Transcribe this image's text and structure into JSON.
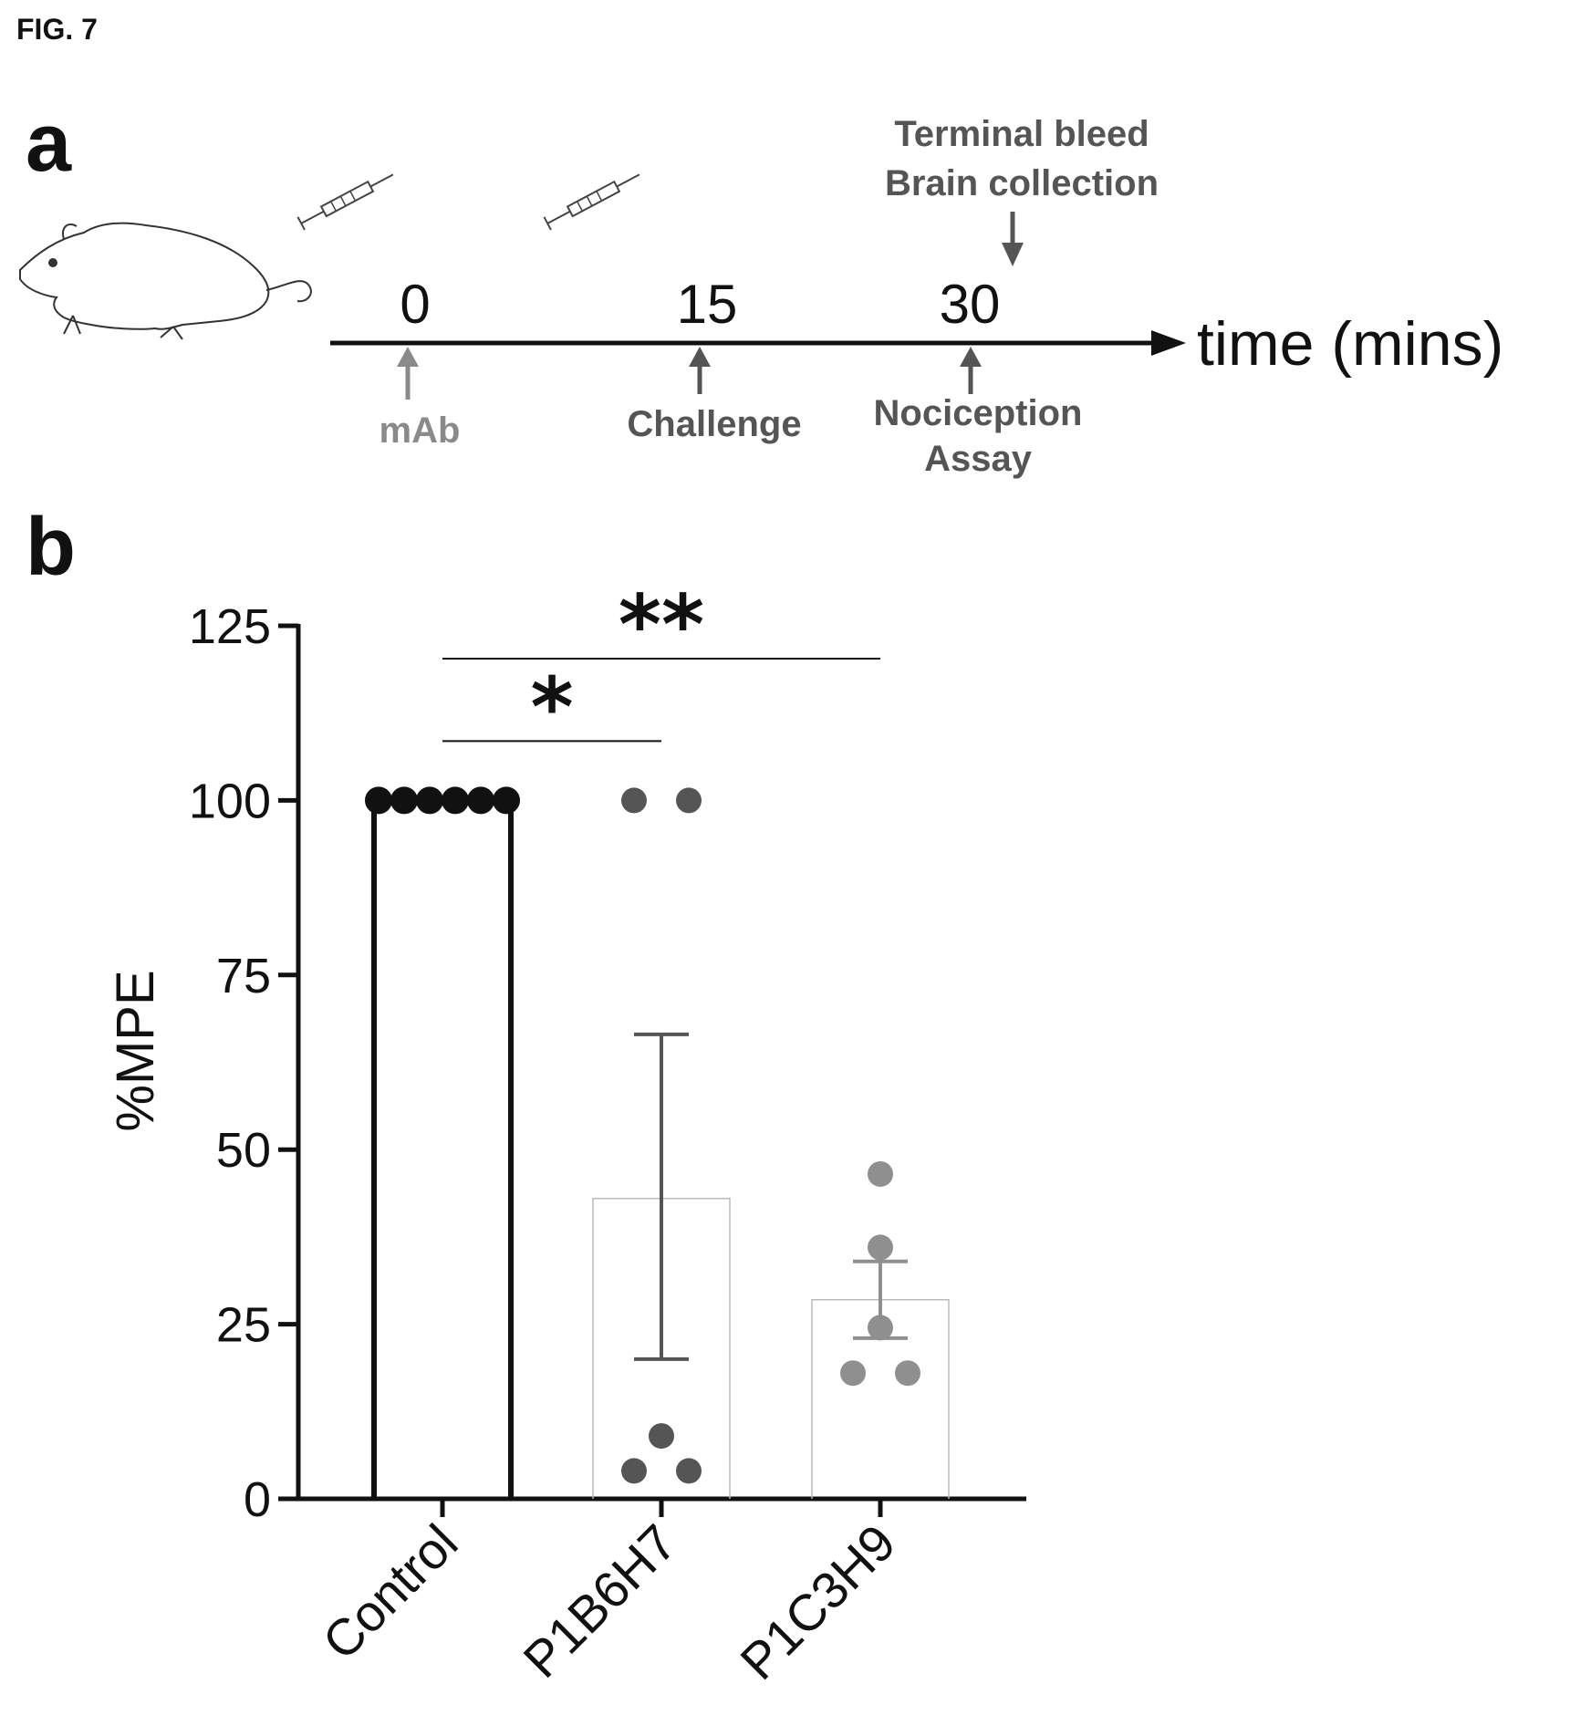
{
  "figure_label": "FIG. 7",
  "panel_a": {
    "letter": "a",
    "time_axis_label": "time (mins)",
    "ticks": [
      "0",
      "15",
      "30"
    ],
    "above_labels": [
      "Terminal bleed",
      "Brain collection"
    ],
    "below_labels": {
      "mab": "mAb",
      "challenge": "Challenge",
      "nociception": [
        "Nociception",
        "Assay"
      ]
    },
    "icons": [
      "mouse-icon",
      "syringe-icon",
      "arrow-up-icon",
      "arrow-down-icon"
    ],
    "colors": {
      "mab": "#8a8a8a",
      "event": "#555555"
    }
  },
  "panel_b": {
    "letter": "b"
  },
  "chart_data": {
    "type": "bar",
    "ylabel": "%MPE",
    "xlabel": "",
    "ylim": [
      0,
      125
    ],
    "yticks": [
      0,
      25,
      50,
      75,
      100,
      125
    ],
    "categories": [
      "Control",
      "P1B6H7",
      "P1C3H9"
    ],
    "means": [
      100,
      43,
      28.5
    ],
    "error_bars": [
      null,
      [
        20,
        66.5
      ],
      [
        23,
        34
      ]
    ],
    "points": [
      [
        100,
        100,
        100,
        100,
        100,
        100
      ],
      [
        100,
        100,
        9,
        4,
        4
      ],
      [
        46.5,
        36,
        24.5,
        18,
        18
      ]
    ],
    "significance": [
      {
        "from": "Control",
        "to": "P1B6H7",
        "label": "*"
      },
      {
        "from": "Control",
        "to": "P1C3H9",
        "label": "**"
      }
    ],
    "colors": [
      "#111111",
      "#555555",
      "#8f8f8f"
    ],
    "bar_styles": [
      "bold-outline",
      "thin-outline",
      "thin-outline"
    ]
  }
}
